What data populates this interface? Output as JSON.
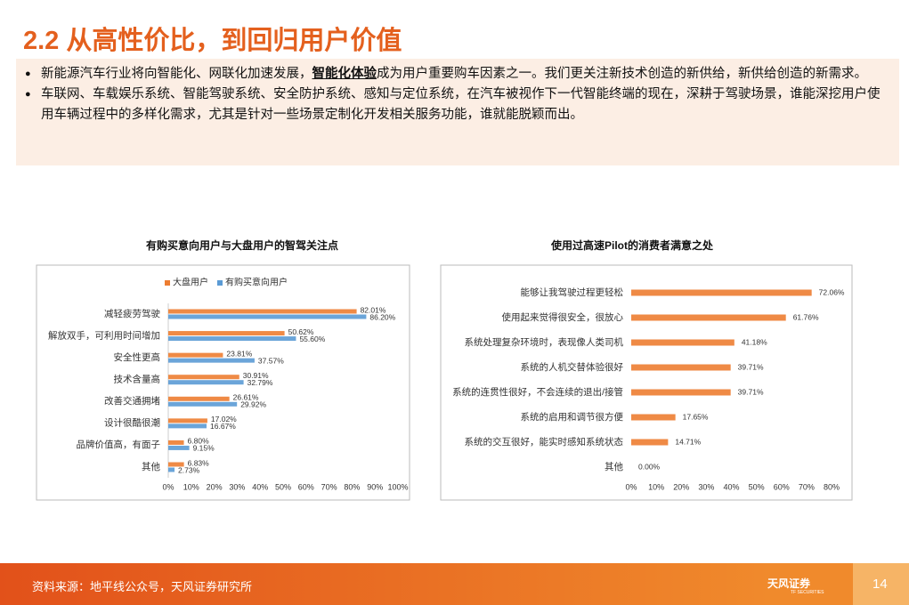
{
  "header": {
    "title": "2.2 从高性价比，到回归用户价值"
  },
  "bullets": [
    {
      "parts": [
        "新能源汽车行业将向智能化、网联化加速发展，",
        "智能化体验",
        "成为用户重要购车因素之一。我们更关注新技术创造的新供给，新供给创造的新需求。"
      ]
    },
    {
      "parts": [
        "车联网、车载娱乐系统、智能驾驶系统、安全防护系统、感知与定位系统，在汽车被视作下一代智能终端的现在，深耕于驾驶场景，谁能深挖用户使用车辆过程中的多样化需求，尤其是针对一些场景定制化开发相关服务功能，谁就能脱颖而出。"
      ]
    }
  ],
  "chart_data": [
    {
      "type": "hbar",
      "title": "有购买意向用户与大盘用户的智驾关注点",
      "categories": [
        "减轻疲劳驾驶",
        "解放双手，可利用时间增加",
        "安全性更高",
        "技术含量高",
        "改善交通拥堵",
        "设计很酷很潮",
        "品牌价值高，有面子",
        "其他"
      ],
      "series": [
        {
          "name": "大盘用户",
          "color": "#ED7D31",
          "values": [
            82.01,
            50.62,
            23.81,
            30.91,
            26.61,
            17.02,
            6.8,
            6.83
          ],
          "value_labels": [
            "82.01%",
            "50.62%",
            "23.81%",
            "30.91%",
            "26.61%",
            "17.02%",
            "6.80%",
            "6.83%"
          ]
        },
        {
          "name": "有购买意向用户",
          "color": "#5B9BD5",
          "values": [
            86.2,
            55.6,
            37.57,
            32.79,
            29.92,
            16.67,
            9.15,
            2.73
          ],
          "value_labels": [
            "86.20%",
            "55.60%",
            "37.57%",
            "32.79%",
            "29.92%",
            "16.67%",
            "9.15%",
            "2.73%"
          ]
        }
      ],
      "xlim": [
        0,
        100
      ],
      "xticks": [
        {
          "value": 0,
          "label": "0%"
        },
        {
          "value": 10,
          "label": "10%"
        },
        {
          "value": 20,
          "label": "20%"
        },
        {
          "value": 30,
          "label": "30%"
        },
        {
          "value": 40,
          "label": "40%"
        },
        {
          "value": 50,
          "label": "50%"
        },
        {
          "value": 60,
          "label": "60%"
        },
        {
          "value": 70,
          "label": "70%"
        },
        {
          "value": 80,
          "label": "80%"
        },
        {
          "value": 90,
          "label": "90%"
        },
        {
          "value": 100,
          "label": "100%"
        }
      ],
      "legend": "top-left"
    },
    {
      "type": "hbar",
      "title": "使用过高速Pilot的消费者满意之处",
      "categories": [
        "能够让我驾驶过程更轻松",
        "使用起来觉得很安全，很放心",
        "系统处理复杂环境时，表现像人类司机",
        "系统的人机交替体验很好",
        "系统的连贯性很好，不会连续的退出/接管",
        "系统的启用和调节很方便",
        "系统的交互很好，能实时感知系统状态",
        "其他"
      ],
      "values": [
        72.06,
        61.76,
        41.18,
        39.71,
        39.71,
        17.65,
        14.71,
        0.0
      ],
      "value_labels": [
        "72.06%",
        "61.76%",
        "41.18%",
        "39.71%",
        "39.71%",
        "17.65%",
        "14.71%",
        "0.00%"
      ],
      "color": "#ED7D31",
      "xlim": [
        0,
        80
      ],
      "xticks": [
        {
          "value": 0,
          "label": "0%"
        },
        {
          "value": 10,
          "label": "10%"
        },
        {
          "value": 20,
          "label": "20%"
        },
        {
          "value": 30,
          "label": "30%"
        },
        {
          "value": 40,
          "label": "40%"
        },
        {
          "value": 50,
          "label": "50%"
        },
        {
          "value": 60,
          "label": "60%"
        },
        {
          "value": 70,
          "label": "70%"
        },
        {
          "value": 80,
          "label": "80%"
        }
      ]
    }
  ],
  "footer": {
    "source": "资料来源：地平线公众号，天风证券研究所",
    "logo": "天风证券",
    "logo_sub": "TF SECURITIES",
    "page_number": "14"
  }
}
